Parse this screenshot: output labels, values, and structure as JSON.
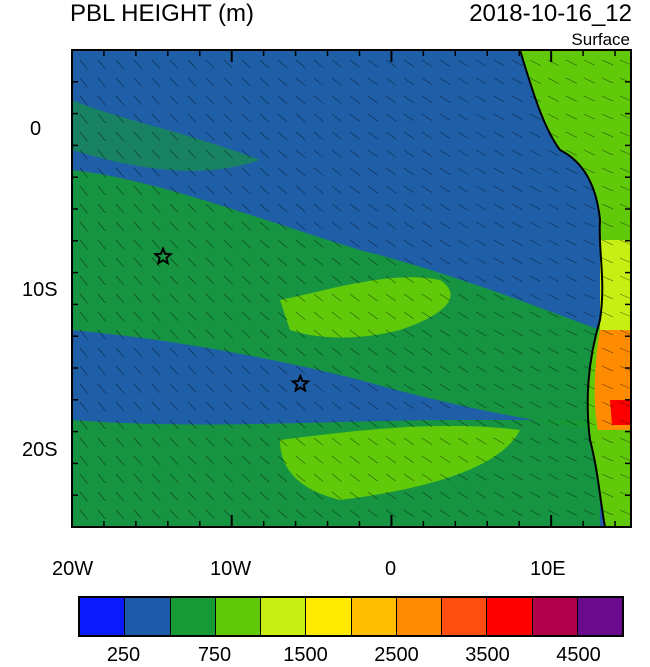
{
  "title": "PBL HEIGHT (m)",
  "datetime": "2018-10-16_12",
  "level_label": "Surface",
  "map": {
    "lon_range": [
      -20,
      15
    ],
    "lat_range": [
      -25,
      5
    ],
    "x_ticks": [
      "20W",
      "10W",
      "0",
      "10E"
    ],
    "y_ticks": [
      "0",
      "10S",
      "20S"
    ],
    "ocean_base_color": "#1f5fa8",
    "markers": [
      {
        "name": "star-marker",
        "lon": -14.3,
        "lat": -8.0
      },
      {
        "name": "star-marker",
        "lon": -5.7,
        "lat": -16.0
      }
    ]
  },
  "colorbar": {
    "colors": [
      "#0a1aff",
      "#1b5aa8",
      "#159a35",
      "#5fc90a",
      "#c8ef13",
      "#ffea00",
      "#ffbe00",
      "#ff8c00",
      "#ff4f10",
      "#ff0000",
      "#b0004a",
      "#6a0a8c"
    ],
    "labels": [
      "250",
      "750",
      "1500",
      "2500",
      "3500",
      "4500"
    ]
  }
}
